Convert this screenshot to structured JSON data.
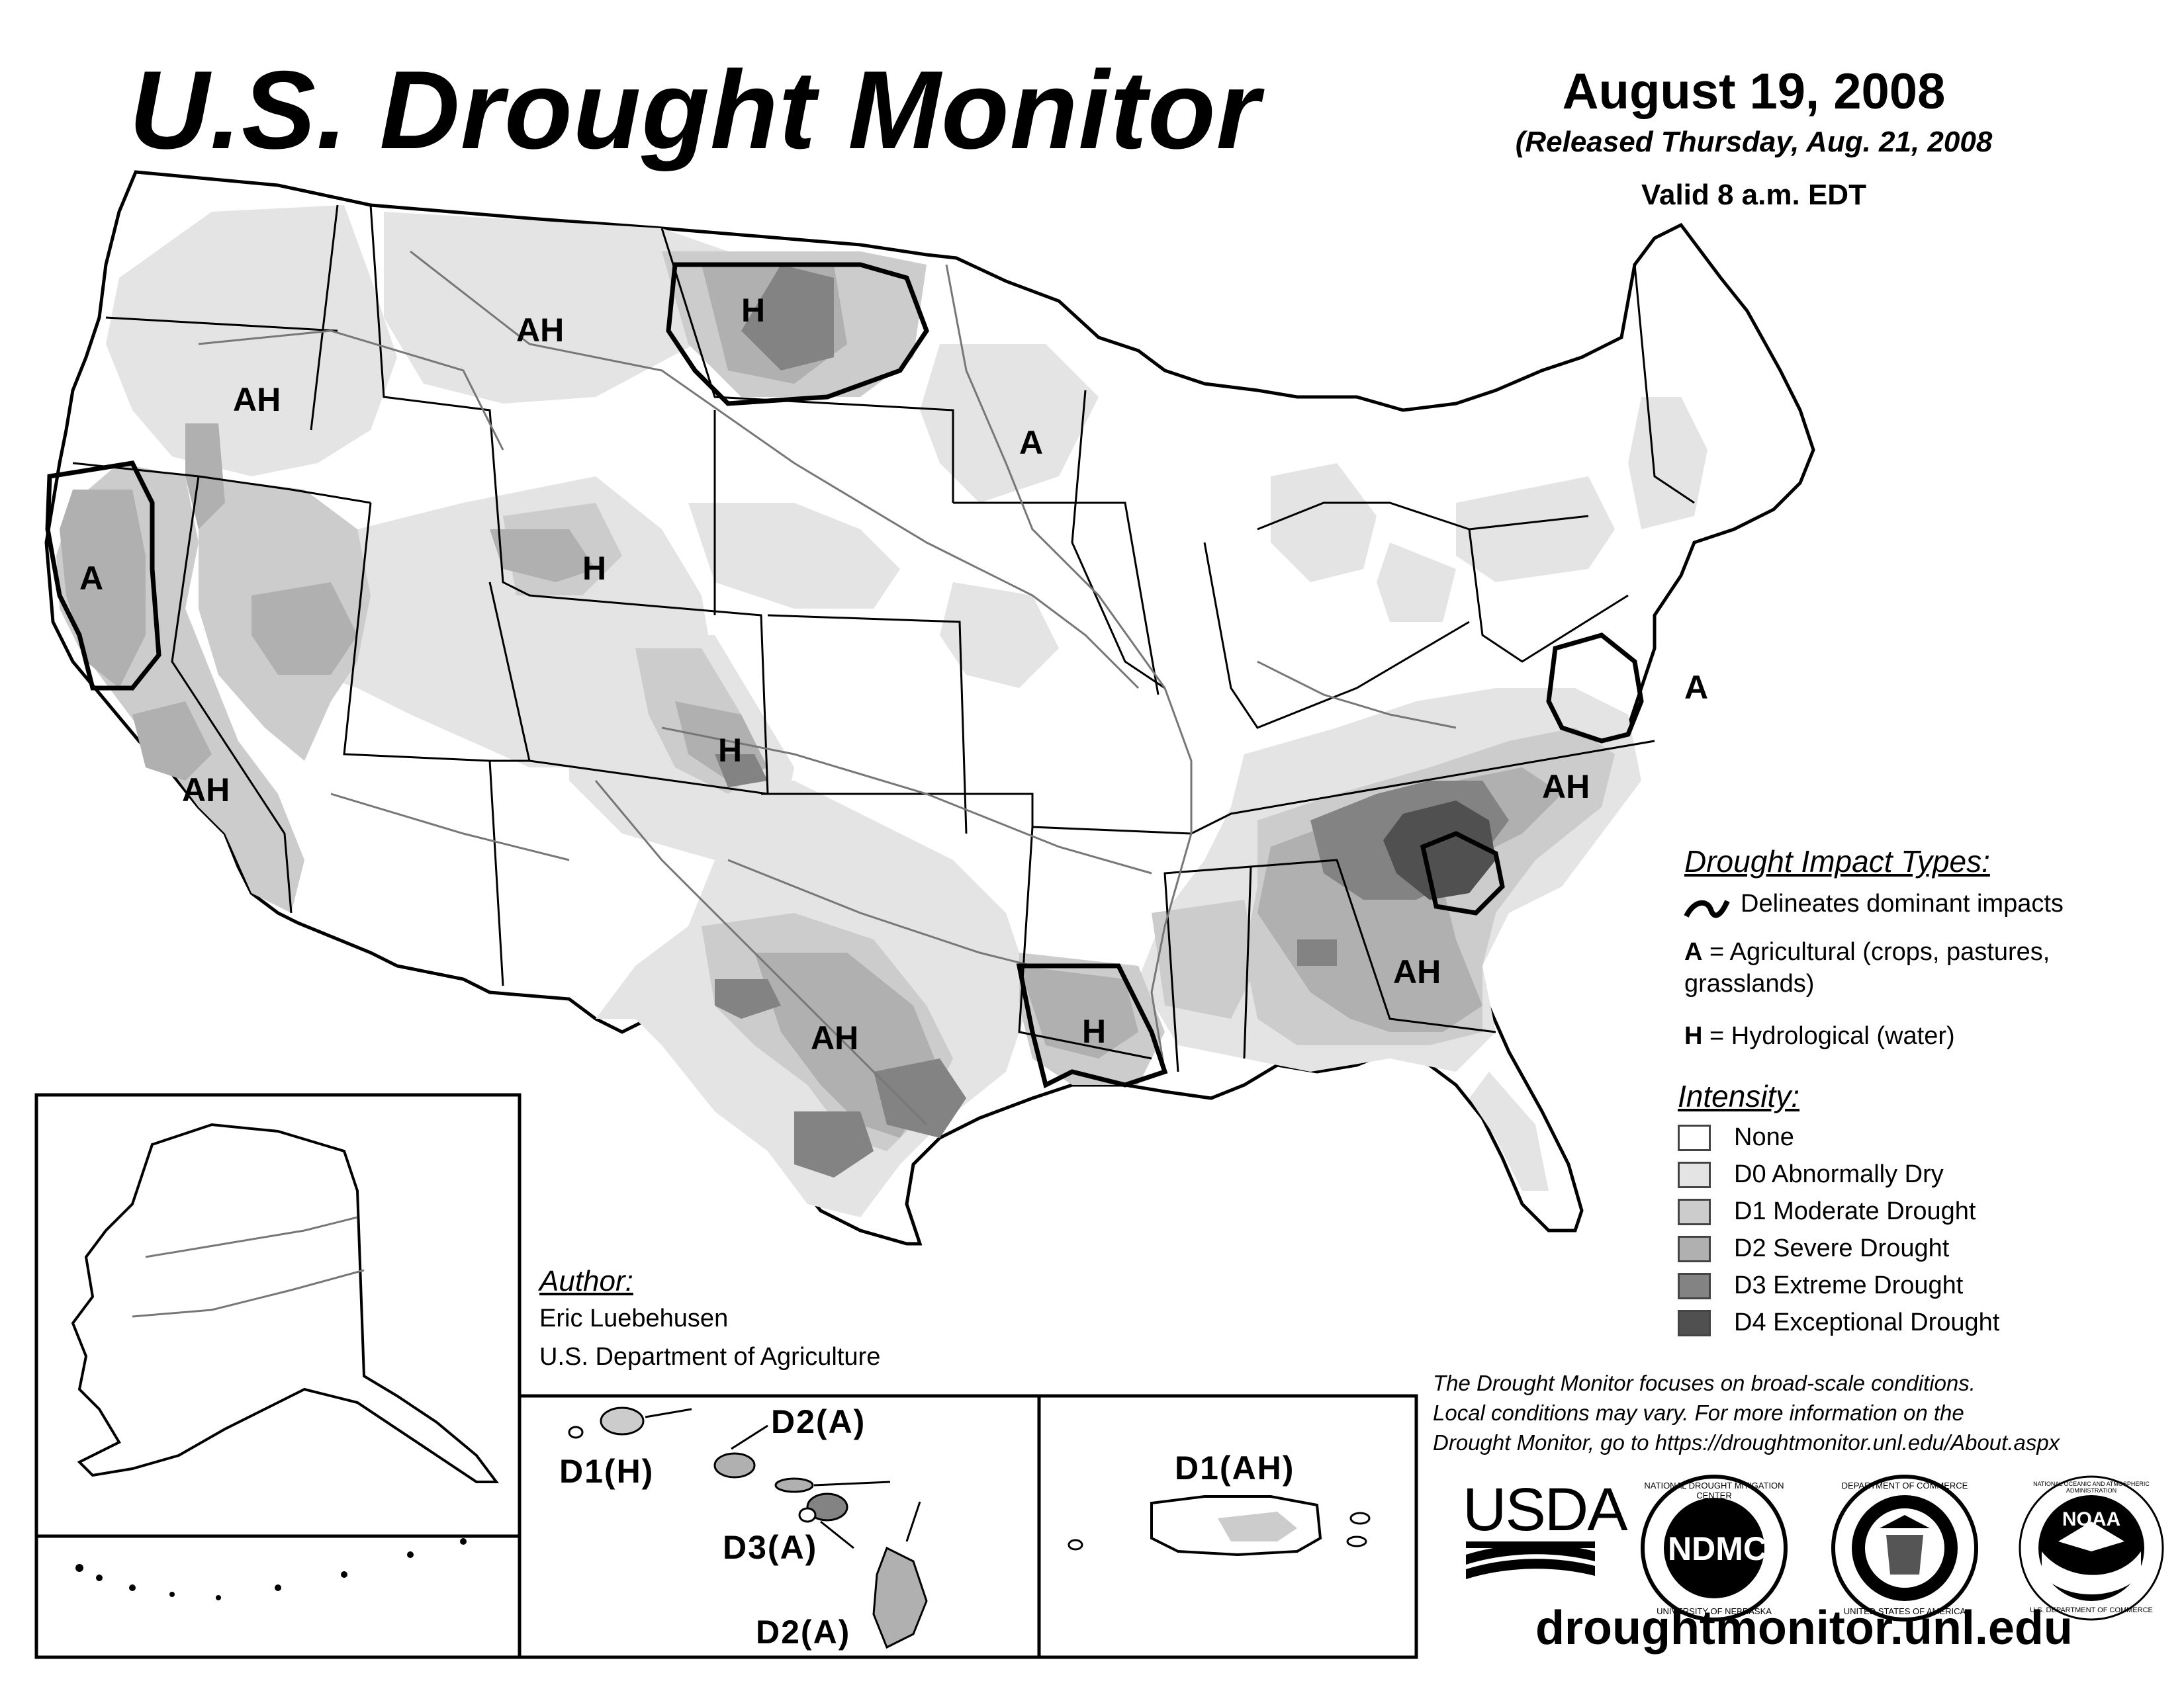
{
  "header": {
    "title": "U.S. Drought Monitor",
    "date": "August 19, 2008",
    "released": "(Released Thursday, Aug. 21, 2008",
    "valid": "Valid 8 a.m. EDT"
  },
  "impact_legend": {
    "heading": "Drought Impact Types:",
    "delineates": "Delineates dominant impacts",
    "agri_key": "A",
    "agri_text": "= Agricultural (crops, pastures,",
    "agri_text2": "grasslands)",
    "hydro_key": "H",
    "hydro_text": "= Hydrological (water)"
  },
  "intensity_legend": {
    "heading": "Intensity:",
    "items": [
      {
        "label": "None",
        "color": "#ffffff"
      },
      {
        "label": "D0 Abnormally Dry",
        "color": "#e4e4e4"
      },
      {
        "label": "D1 Moderate Drought",
        "color": "#cccccc"
      },
      {
        "label": "D2 Severe Drought",
        "color": "#b0b0b0"
      },
      {
        "label": "D3 Extreme Drought",
        "color": "#838383"
      },
      {
        "label": "D4 Exceptional Drought",
        "color": "#505050"
      }
    ]
  },
  "author": {
    "heading": "Author:",
    "name": "Eric Luebehusen",
    "org": "U.S. Department of Agriculture"
  },
  "note": {
    "line1": "The Drought Monitor focuses on broad-scale conditions.",
    "line2": "Local conditions may vary. For more information on the",
    "line3": "Drought Monitor, go to https://droughtmonitor.unl.edu/About.aspx"
  },
  "logos": {
    "usda": "USDA",
    "ndmc": "NDMC",
    "ndmc_ring_top": "NATIONAL DROUGHT MITIGATION CENTER",
    "ndmc_ring_bottom": "UNIVERSITY OF NEBRASKA",
    "commerce_ring_top": "DEPARTMENT OF COMMERCE",
    "commerce_ring_bottom": "UNITED STATES OF AMERICA",
    "noaa": "NOAA",
    "noaa_ring_top": "NATIONAL OCEANIC AND ATMOSPHERIC ADMINISTRATION",
    "noaa_ring_bottom": "U.S. DEPARTMENT OF COMMERCE"
  },
  "url": "droughtmonitor.unl.edu",
  "map_labels": {
    "northwest": "AH",
    "montana": "AH",
    "north_dakota": "H",
    "minnesota": "A",
    "california_north": "A",
    "california_south": "AH",
    "wyoming": "H",
    "colorado": "H",
    "texas": "AH",
    "louisiana": "H",
    "georgia": "AH",
    "carolinas": "AH",
    "mid_atlantic": "A"
  },
  "insets": {
    "hawaii_kauai": "D1(H)",
    "hawaii_oahu": "D2(A)",
    "hawaii_maui": "D3(A)",
    "hawaii_big": "D2(A)",
    "puerto_rico": "D1(AH)"
  }
}
